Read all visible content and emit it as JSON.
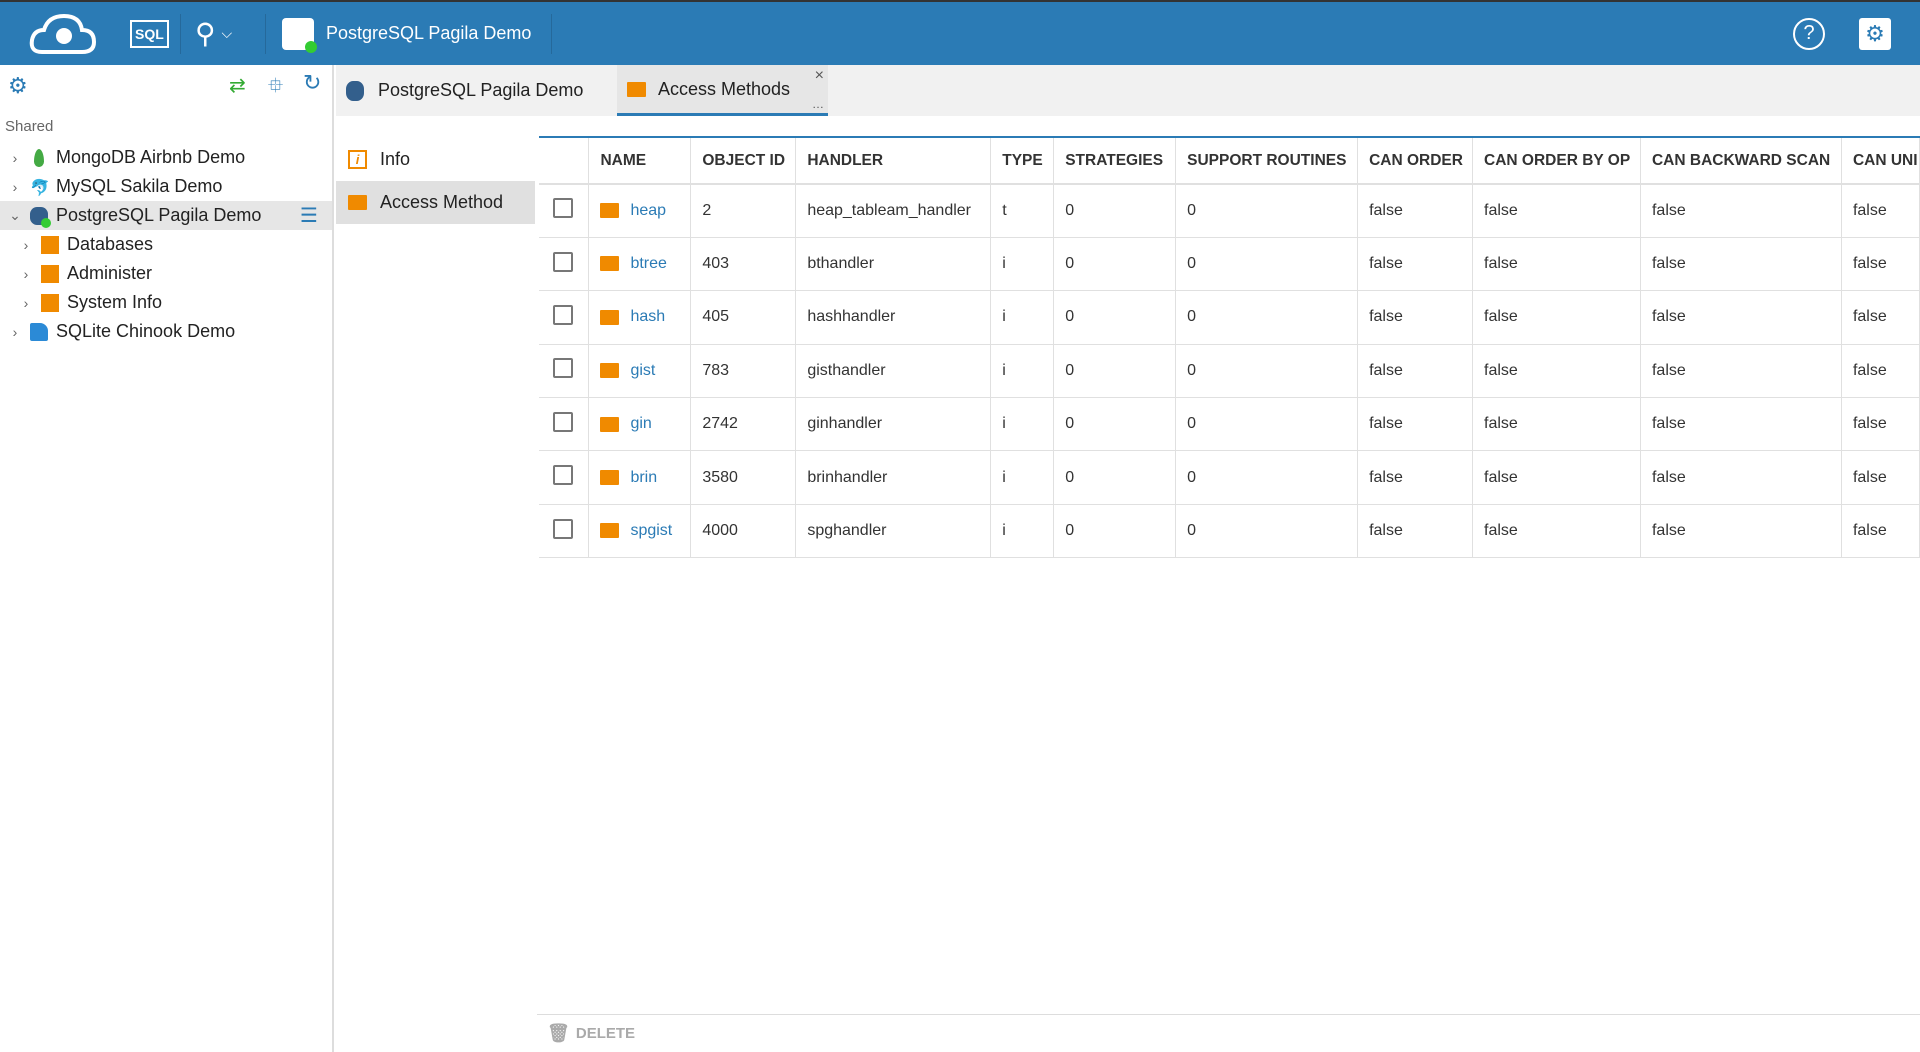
{
  "topbar": {
    "connection_title": "PostgreSQL Pagila Demo",
    "sql_label": "SQL",
    "icons": [
      "cloudbeaver-logo",
      "sql-editor-icon",
      "tools-icon",
      "help-icon",
      "settings-icon"
    ]
  },
  "sidebar": {
    "section": "Shared",
    "items": [
      {
        "label": "MongoDB Airbnb Demo",
        "icon": "mongodb-icon",
        "level": 0,
        "expanded": false
      },
      {
        "label": "MySQL Sakila Demo",
        "icon": "mysql-icon",
        "level": 0,
        "expanded": false
      },
      {
        "label": "PostgreSQL Pagila Demo",
        "icon": "postgresql-icon",
        "level": 0,
        "expanded": true,
        "selected": true
      },
      {
        "label": "Databases",
        "icon": "databases-folder-icon",
        "level": 1,
        "expanded": false
      },
      {
        "label": "Administer",
        "icon": "administer-folder-icon",
        "level": 1,
        "expanded": false
      },
      {
        "label": "System Info",
        "icon": "system-info-folder-icon",
        "level": 1,
        "expanded": false
      },
      {
        "label": "SQLite Chinook Demo",
        "icon": "sqlite-icon",
        "level": 0,
        "expanded": false
      }
    ]
  },
  "tabs": [
    {
      "label": "PostgreSQL Pagila Demo",
      "active": false
    },
    {
      "label": "Access Methods",
      "active": true
    }
  ],
  "subnav": [
    {
      "label": "Info"
    },
    {
      "label": "Access Method",
      "selected": true
    }
  ],
  "table": {
    "columns": [
      "NAME",
      "OBJECT ID",
      "HANDLER",
      "TYPE",
      "STRATEGIES",
      "SUPPORT ROUTINES",
      "CAN ORDER",
      "CAN ORDER BY OP",
      "CAN BACKWARD SCAN",
      "CAN UNI"
    ],
    "rows": [
      [
        "heap",
        "2",
        "heap_tableam_handler",
        "t",
        "0",
        "0",
        "false",
        "false",
        "false",
        "false"
      ],
      [
        "btree",
        "403",
        "bthandler",
        "i",
        "0",
        "0",
        "false",
        "false",
        "false",
        "false"
      ],
      [
        "hash",
        "405",
        "hashhandler",
        "i",
        "0",
        "0",
        "false",
        "false",
        "false",
        "false"
      ],
      [
        "gist",
        "783",
        "gisthandler",
        "i",
        "0",
        "0",
        "false",
        "false",
        "false",
        "false"
      ],
      [
        "gin",
        "2742",
        "ginhandler",
        "i",
        "0",
        "0",
        "false",
        "false",
        "false",
        "false"
      ],
      [
        "brin",
        "3580",
        "brinhandler",
        "i",
        "0",
        "0",
        "false",
        "false",
        "false",
        "false"
      ],
      [
        "spgist",
        "4000",
        "spghandler",
        "i",
        "0",
        "0",
        "false",
        "false",
        "false",
        "false"
      ]
    ]
  },
  "footer": {
    "delete_label": "DELETE"
  },
  "colors": {
    "brand": "#2b7bb5",
    "folder": "#f08a00"
  }
}
